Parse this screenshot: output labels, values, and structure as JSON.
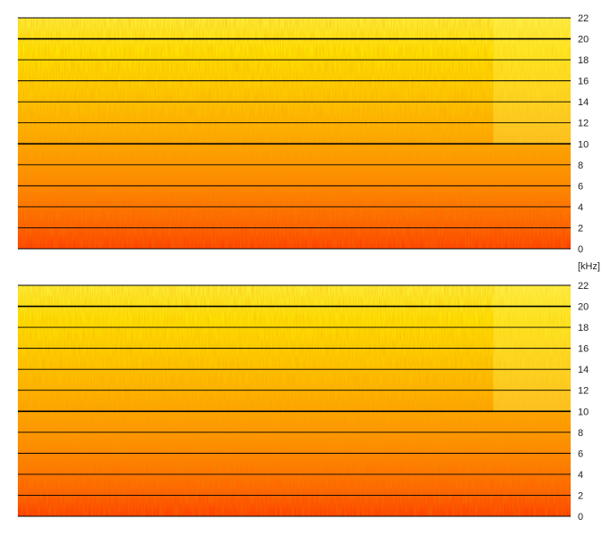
{
  "chart_data": [
    {
      "type": "heatmap",
      "subtype": "spectrogram",
      "channel": "top",
      "y_unit": "kHz",
      "ylim": [
        0,
        22
      ],
      "y_ticks": [
        0,
        2,
        4,
        6,
        8,
        10,
        12,
        14,
        16,
        18,
        20,
        22
      ],
      "y_tick_labels": [
        "0",
        "2",
        "4",
        "6",
        "8",
        "10",
        "12",
        "14",
        "16",
        "18",
        "20",
        "22"
      ],
      "emphasized_grid_lines": [
        10,
        20
      ],
      "grid": true,
      "colormap": [
        "#ff3a00",
        "#ff7a00",
        "#ffae00",
        "#ffd800",
        "#fff200",
        "#ffff66"
      ]
    },
    {
      "type": "heatmap",
      "subtype": "spectrogram",
      "channel": "bottom",
      "y_unit": "kHz",
      "ylim": [
        0,
        22
      ],
      "y_ticks": [
        0,
        2,
        4,
        6,
        8,
        10,
        12,
        14,
        16,
        18,
        20,
        22
      ],
      "y_tick_labels": [
        "0",
        "2",
        "4",
        "6",
        "8",
        "10",
        "12",
        "14",
        "16",
        "18",
        "20",
        "22"
      ],
      "emphasized_grid_lines": [
        10,
        20
      ],
      "grid": true,
      "colormap": [
        "#ff3a00",
        "#ff7a00",
        "#ffae00",
        "#ffd800",
        "#fff200",
        "#ffff66"
      ]
    }
  ],
  "unit_label": "[kHz]"
}
